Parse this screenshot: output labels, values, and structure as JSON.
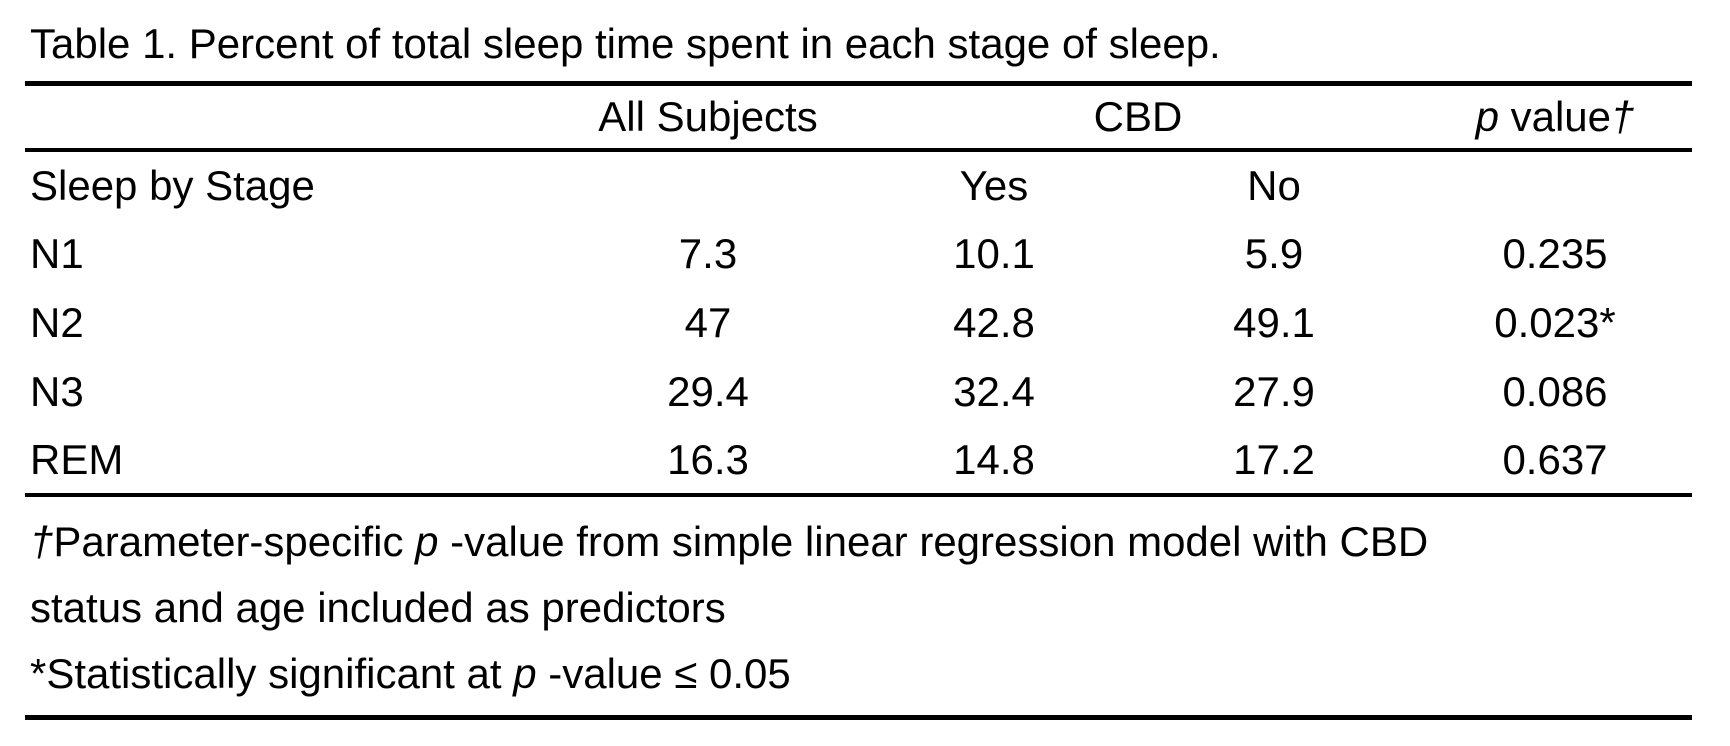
{
  "table": {
    "title": "Table 1. Percent of total sleep time spent in each stage of sleep.",
    "header": {
      "all_subjects": "All Subjects",
      "cbd": "CBD",
      "p_italic": "p",
      "p_label": " value",
      "dagger": "†"
    },
    "stage_header": {
      "label": "Sleep by Stage",
      "yes": "Yes",
      "no": "No"
    },
    "rows": [
      {
        "stage": "N1",
        "all_subjects": "7.3",
        "cbd_yes": "10.1",
        "cbd_no": "5.9",
        "p_value": "0.235"
      },
      {
        "stage": "N2",
        "all_subjects": "47",
        "cbd_yes": "42.8",
        "cbd_no": "49.1",
        "p_value": "0.023*"
      },
      {
        "stage": "N3",
        "all_subjects": "29.4",
        "cbd_yes": "32.4",
        "cbd_no": "27.9",
        "p_value": "0.086"
      },
      {
        "stage": "REM",
        "all_subjects": "16.3",
        "cbd_yes": "14.8",
        "cbd_no": "17.2",
        "p_value": "0.637"
      }
    ],
    "footnotes": {
      "dagger": "†",
      "line1_pre": "Parameter-specific ",
      "line1_p": "p",
      "line1_post": " -value from simple linear regression model with CBD",
      "line2": "status and age included as predictors",
      "line3_pre": "*Statistically significant at ",
      "line3_p": "p",
      "line3_post": " -value ≤ 0.05"
    },
    "colors": {
      "background": "#ffffff",
      "text": "#000000",
      "rule": "#000000"
    }
  }
}
